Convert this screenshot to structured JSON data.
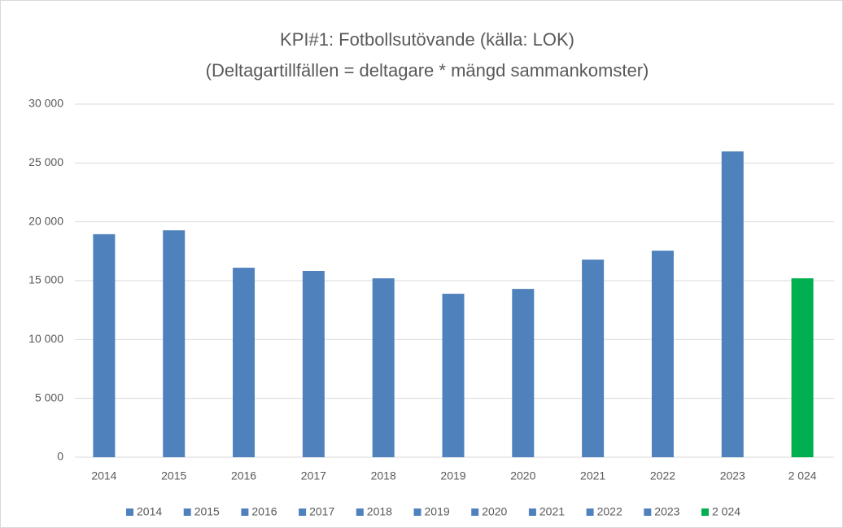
{
  "chart_data": {
    "type": "bar",
    "title": "KPI#1: Fotbollsutövande (källa: LOK)",
    "subtitle": "(Deltagartillfällen = deltagare * mängd sammankomster)",
    "categories": [
      "2014",
      "2015",
      "2016",
      "2017",
      "2018",
      "2019",
      "2020",
      "2021",
      "2022",
      "2023",
      "2 024"
    ],
    "values": [
      18950,
      19280,
      16100,
      15830,
      15200,
      13890,
      14300,
      16790,
      17550,
      25980,
      15200
    ],
    "colors": [
      "#4f81bd",
      "#4f81bd",
      "#4f81bd",
      "#4f81bd",
      "#4f81bd",
      "#4f81bd",
      "#4f81bd",
      "#4f81bd",
      "#4f81bd",
      "#4f81bd",
      "#00b050"
    ],
    "ylim": [
      0,
      30000
    ],
    "yticks": [
      0,
      {
        "value": 5000,
        "label": "5 000"
      },
      {
        "value": 10000,
        "label": "10 000"
      },
      {
        "value": 15000,
        "label": "15 000"
      },
      {
        "value": 20000,
        "label": "20 000"
      },
      {
        "value": 25000,
        "label": "25 000"
      },
      {
        "value": 30000,
        "label": "30 000"
      }
    ],
    "grid": true,
    "legend": "bottom"
  }
}
